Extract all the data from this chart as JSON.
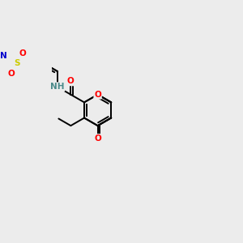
{
  "bg": "#ececec",
  "bond_color": "#000000",
  "O_color": "#ff0000",
  "N_color": "#0000cd",
  "S_color": "#cccc00",
  "NH_color": "#4a8a8a",
  "lw": 1.4,
  "fs": 7.5,
  "figsize": [
    3.0,
    3.0
  ],
  "dpi": 100,
  "xlim": [
    0,
    10
  ],
  "ylim": [
    0,
    10
  ]
}
